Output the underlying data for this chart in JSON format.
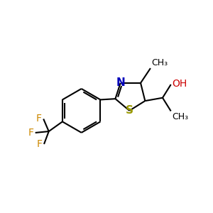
{
  "background_color": "#ffffff",
  "bond_color": "#000000",
  "nitrogen_color": "#0000bb",
  "sulfur_color": "#999900",
  "oxygen_color": "#cc0000",
  "fluorine_color": "#cc8800",
  "line_width": 1.5,
  "font_size": 10,
  "figure_size": [
    3.0,
    3.0
  ],
  "dpi": 100,
  "xlim": [
    0,
    10
  ],
  "ylim": [
    0,
    10
  ]
}
